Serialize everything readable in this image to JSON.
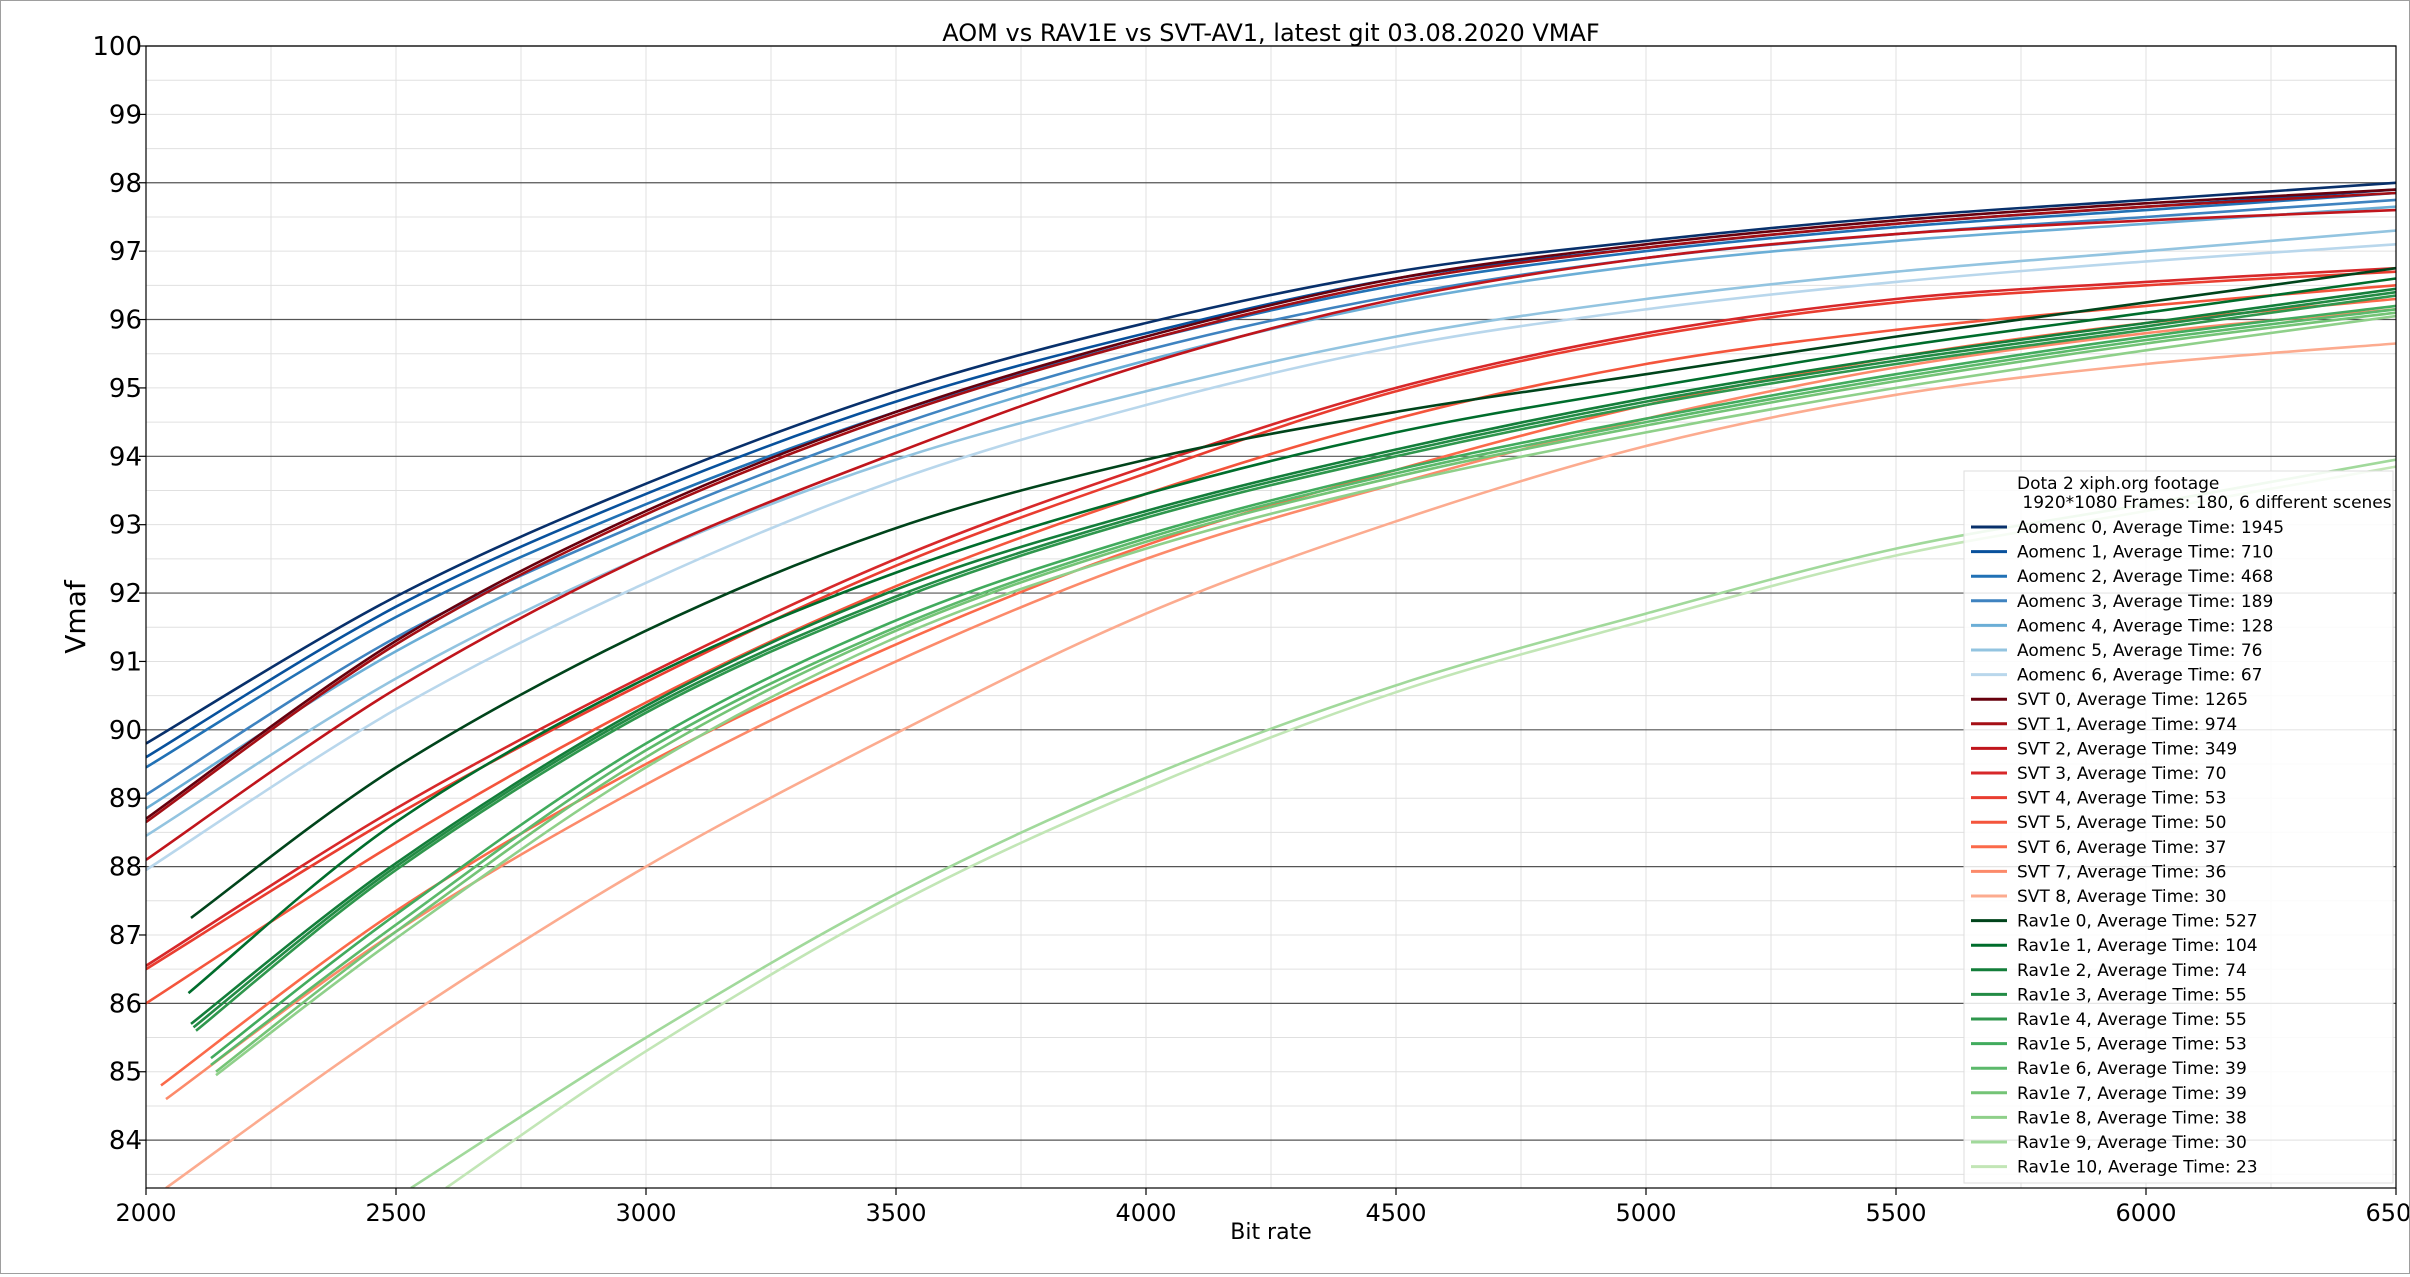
{
  "chart_data": {
    "type": "line",
    "title": "AOM vs RAV1E vs SVT-AV1, latest git 03.08.2020 VMAF",
    "xlabel": "Bit rate",
    "ylabel": "Vmaf",
    "xlim": [
      2000,
      6500
    ],
    "ylim": [
      83.3,
      100
    ],
    "x_ticks": [
      2000,
      2500,
      3000,
      3500,
      4000,
      4500,
      5000,
      5500,
      6000,
      6500
    ],
    "y_ticks": [
      84,
      85,
      86,
      87,
      88,
      89,
      90,
      91,
      92,
      93,
      94,
      95,
      96,
      97,
      98,
      99,
      100
    ],
    "grid": {
      "major_y_dark": true,
      "minor_light": true
    },
    "legend": {
      "placement": "bottom-right",
      "title_line1": "Dota 2 xiph.org footage",
      "title_line2": " 1920*1080 Frames: 180, 6 different scenes"
    },
    "series": [
      {
        "name": "Aomenc 0, Average Time: 1945",
        "color": "#08306b",
        "x": [
          2000,
          2500,
          3000,
          3500,
          4000,
          4500,
          5000,
          5500,
          6000,
          6500
        ],
        "y": [
          89.8,
          91.95,
          93.6,
          94.95,
          95.95,
          96.7,
          97.15,
          97.5,
          97.75,
          98.0
        ]
      },
      {
        "name": "Aomenc 1, Average Time: 710",
        "color": "#08519c",
        "x": [
          2000,
          2500,
          3000,
          3500,
          4000,
          4500,
          5000,
          5500,
          6000,
          6500
        ],
        "y": [
          89.6,
          91.8,
          93.45,
          94.8,
          95.8,
          96.6,
          97.05,
          97.4,
          97.65,
          97.9
        ]
      },
      {
        "name": "Aomenc 2, Average Time: 468",
        "color": "#2171b5",
        "x": [
          2000,
          2500,
          3000,
          3500,
          4000,
          4500,
          5000,
          5500,
          6000,
          6500
        ],
        "y": [
          89.45,
          91.65,
          93.3,
          94.65,
          95.7,
          96.5,
          97.0,
          97.35,
          97.6,
          97.85
        ]
      },
      {
        "name": "Aomenc 3, Average Time: 189",
        "color": "#3f83c0",
        "x": [
          2000,
          2500,
          3000,
          3500,
          4000,
          4500,
          5000,
          5500,
          6000,
          6500
        ],
        "y": [
          89.05,
          91.35,
          93.05,
          94.45,
          95.55,
          96.35,
          96.9,
          97.25,
          97.5,
          97.75
        ]
      },
      {
        "name": "Aomenc 4, Average Time: 128",
        "color": "#6baed6",
        "x": [
          2000,
          2500,
          3000,
          3500,
          4000,
          4500,
          5000,
          5500,
          6000,
          6500
        ],
        "y": [
          88.85,
          91.15,
          92.9,
          94.3,
          95.4,
          96.25,
          96.8,
          97.15,
          97.4,
          97.65
        ]
      },
      {
        "name": "Aomenc 5, Average Time: 76",
        "color": "#93c4e0",
        "x": [
          2000,
          2500,
          3000,
          3500,
          4000,
          4500,
          5000,
          5500,
          6000,
          6500
        ],
        "y": [
          88.45,
          90.75,
          92.55,
          93.95,
          94.95,
          95.75,
          96.3,
          96.7,
          97.0,
          97.3
        ]
      },
      {
        "name": "Aomenc 6, Average Time: 67",
        "color": "#b9d7ec",
        "x": [
          2000,
          2500,
          3000,
          3500,
          4000,
          4500,
          5000,
          5500,
          6000,
          6500
        ],
        "y": [
          87.95,
          90.3,
          92.15,
          93.65,
          94.75,
          95.6,
          96.15,
          96.55,
          96.85,
          97.1
        ]
      },
      {
        "name": "SVT 0, Average Time: 1265",
        "color": "#67000d",
        "x": [
          2000,
          2500,
          3000,
          3500,
          4000,
          4500,
          5000,
          5500,
          6000,
          6500
        ],
        "y": [
          88.7,
          91.3,
          93.2,
          94.65,
          95.75,
          96.6,
          97.1,
          97.45,
          97.7,
          97.9
        ]
      },
      {
        "name": "SVT 1, Average Time: 974",
        "color": "#a50f15",
        "x": [
          2000,
          2500,
          3000,
          3500,
          4000,
          4500,
          5000,
          5500,
          6000,
          6500
        ],
        "y": [
          88.65,
          91.25,
          93.15,
          94.6,
          95.7,
          96.55,
          97.05,
          97.4,
          97.65,
          97.85
        ]
      },
      {
        "name": "SVT 2, Average Time: 349",
        "color": "#c0151c",
        "x": [
          2000,
          2500,
          3000,
          3500,
          4000,
          4500,
          5000,
          5500,
          6000,
          6500
        ],
        "y": [
          88.1,
          90.6,
          92.55,
          94.05,
          95.35,
          96.3,
          96.9,
          97.25,
          97.45,
          97.6
        ]
      },
      {
        "name": "SVT 3, Average Time: 70",
        "color": "#d7282a",
        "x": [
          2000,
          2500,
          3000,
          3500,
          4000,
          4500,
          5000,
          5500,
          6000,
          6500
        ],
        "y": [
          86.55,
          88.85,
          90.8,
          92.5,
          93.85,
          95.0,
          95.8,
          96.3,
          96.55,
          96.75
        ]
      },
      {
        "name": "SVT 4, Average Time: 53",
        "color": "#e93d30",
        "x": [
          2000,
          2500,
          3000,
          3500,
          4000,
          4500,
          5000,
          5500,
          6000,
          6500
        ],
        "y": [
          86.5,
          88.75,
          90.7,
          92.4,
          93.75,
          94.95,
          95.75,
          96.25,
          96.5,
          96.7
        ]
      },
      {
        "name": "SVT 5, Average Time: 50",
        "color": "#f4553c",
        "x": [
          2000,
          2500,
          3000,
          3500,
          4000,
          4500,
          5000,
          5500,
          6000,
          6500
        ],
        "y": [
          86.0,
          88.35,
          90.4,
          92.1,
          93.45,
          94.55,
          95.35,
          95.85,
          96.2,
          96.5
        ]
      },
      {
        "name": "SVT 6, Average Time: 37",
        "color": "#fb6a4a",
        "x": [
          2030,
          2500,
          3000,
          3500,
          4000,
          4500,
          5000,
          5500,
          6000,
          6500
        ],
        "y": [
          84.8,
          87.35,
          89.5,
          91.25,
          92.7,
          93.8,
          94.75,
          95.45,
          95.95,
          96.3
        ]
      },
      {
        "name": "SVT 7, Average Time: 36",
        "color": "#fc8a6a",
        "x": [
          2040,
          2500,
          3000,
          3500,
          4000,
          4500,
          5000,
          5500,
          6000,
          6500
        ],
        "y": [
          84.6,
          87.05,
          89.2,
          91.0,
          92.5,
          93.6,
          94.55,
          95.3,
          95.8,
          96.15
        ]
      },
      {
        "name": "SVT 8, Average Time: 30",
        "color": "#fcab8f",
        "x": [
          2040,
          2500,
          3000,
          3500,
          4000,
          4500,
          5000,
          5500,
          6000,
          6500
        ],
        "y": [
          83.3,
          85.7,
          88.0,
          89.95,
          91.7,
          93.05,
          94.15,
          94.9,
          95.35,
          95.65
        ]
      },
      {
        "name": "Rav1e 0, Average Time: 527",
        "color": "#00441b",
        "x": [
          2090,
          2500,
          3000,
          3500,
          4000,
          4500,
          5000,
          5500,
          6000,
          6500
        ],
        "y": [
          87.25,
          89.45,
          91.45,
          92.95,
          93.95,
          94.65,
          95.2,
          95.75,
          96.25,
          96.75
        ]
      },
      {
        "name": "Rav1e 1, Average Time: 104",
        "color": "#006d2c",
        "x": [
          2085,
          2500,
          3000,
          3500,
          4000,
          4500,
          5000,
          5500,
          6000,
          6500
        ],
        "y": [
          86.15,
          88.65,
          90.75,
          92.3,
          93.45,
          94.35,
          95.0,
          95.6,
          96.1,
          96.6
        ]
      },
      {
        "name": "Rav1e 2, Average Time: 74",
        "color": "#137e3a",
        "x": [
          2090,
          2500,
          3000,
          3500,
          4000,
          4500,
          5000,
          5500,
          6000,
          6500
        ],
        "y": [
          85.7,
          88.05,
          90.35,
          92.05,
          93.2,
          94.1,
          94.85,
          95.45,
          95.95,
          96.45
        ]
      },
      {
        "name": "Rav1e 3, Average Time: 55",
        "color": "#238b45",
        "x": [
          2095,
          2500,
          3000,
          3500,
          4000,
          4500,
          5000,
          5500,
          6000,
          6500
        ],
        "y": [
          85.65,
          88.0,
          90.3,
          91.95,
          93.15,
          94.05,
          94.8,
          95.4,
          95.9,
          96.4
        ]
      },
      {
        "name": "Rav1e 4, Average Time: 55",
        "color": "#2f974d",
        "x": [
          2100,
          2500,
          3000,
          3500,
          4000,
          4500,
          5000,
          5500,
          6000,
          6500
        ],
        "y": [
          85.6,
          87.95,
          90.25,
          91.9,
          93.1,
          94.0,
          94.75,
          95.35,
          95.85,
          96.35
        ]
      },
      {
        "name": "Rav1e 5, Average Time: 53",
        "color": "#41ab5d",
        "x": [
          2130,
          2500,
          3000,
          3500,
          4000,
          4500,
          5000,
          5500,
          6000,
          6500
        ],
        "y": [
          85.2,
          87.3,
          89.8,
          91.6,
          92.85,
          93.8,
          94.55,
          95.2,
          95.75,
          96.2
        ]
      },
      {
        "name": "Rav1e 6, Average Time: 39",
        "color": "#5cb96b",
        "x": [
          2130,
          2500,
          3000,
          3500,
          4000,
          4500,
          5000,
          5500,
          6000,
          6500
        ],
        "y": [
          85.1,
          87.15,
          89.7,
          91.5,
          92.8,
          93.75,
          94.5,
          95.15,
          95.7,
          96.15
        ]
      },
      {
        "name": "Rav1e 7, Average Time: 39",
        "color": "#74c476",
        "x": [
          2140,
          2500,
          3000,
          3500,
          4000,
          4500,
          5000,
          5500,
          6000,
          6500
        ],
        "y": [
          85.0,
          87.05,
          89.6,
          91.45,
          92.75,
          93.7,
          94.45,
          95.1,
          95.65,
          96.1
        ]
      },
      {
        "name": "Rav1e 8, Average Time: 38",
        "color": "#8fd08a",
        "x": [
          2140,
          2500,
          3000,
          3500,
          4000,
          4500,
          5000,
          5500,
          6000,
          6500
        ],
        "y": [
          84.95,
          86.95,
          89.45,
          91.35,
          92.65,
          93.6,
          94.35,
          95.0,
          95.55,
          96.05
        ]
      },
      {
        "name": "Rav1e 9, Average Time: 30",
        "color": "#a1d99b",
        "x": [
          2530,
          3000,
          3500,
          4000,
          4500,
          5000,
          5500,
          6000,
          6500
        ],
        "y": [
          83.3,
          85.5,
          87.6,
          89.3,
          90.65,
          91.7,
          92.65,
          93.3,
          93.95
        ]
      },
      {
        "name": "Rav1e 10, Average Time: 23",
        "color": "#c2e6b6",
        "x": [
          2600,
          3000,
          3500,
          4000,
          4500,
          5000,
          5500,
          6000,
          6500
        ],
        "y": [
          83.3,
          85.3,
          87.45,
          89.15,
          90.55,
          91.6,
          92.55,
          93.2,
          93.85
        ]
      }
    ]
  }
}
